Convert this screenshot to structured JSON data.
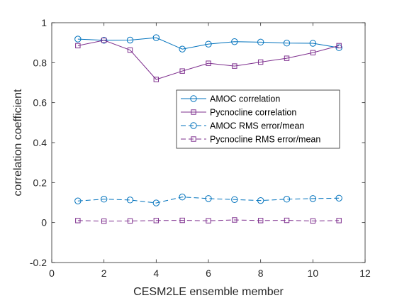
{
  "chart_data": {
    "type": "line",
    "title": "",
    "xlabel": "CESM2LE ensemble member",
    "ylabel": "correlation coefficient",
    "xlim": [
      0,
      12
    ],
    "ylim": [
      -0.2,
      1
    ],
    "xticks": [
      0,
      2,
      4,
      6,
      8,
      10,
      12
    ],
    "yticks": [
      -0.2,
      0,
      0.2,
      0.4,
      0.6,
      0.8,
      1
    ],
    "xtick_labels": [
      "0",
      "2",
      "4",
      "6",
      "8",
      "10",
      "12"
    ],
    "ytick_labels": [
      "-0.2",
      "0",
      "0.2",
      "0.4",
      "0.6",
      "0.8",
      "1"
    ],
    "grid": false,
    "box": true,
    "legend_location": "right",
    "x": [
      1,
      2,
      3,
      4,
      5,
      6,
      7,
      8,
      9,
      10,
      11
    ],
    "series": [
      {
        "name": "AMOC correlation",
        "color": "#0072BD",
        "line_style": "solid",
        "marker": "circle",
        "values": [
          0.918,
          0.912,
          0.913,
          0.925,
          0.868,
          0.893,
          0.905,
          0.903,
          0.898,
          0.897,
          0.875
        ]
      },
      {
        "name": "Pycnocline correlation",
        "color": "#7E2F8E",
        "line_style": "solid",
        "marker": "square",
        "values": [
          0.885,
          0.912,
          0.863,
          0.716,
          0.758,
          0.797,
          0.783,
          0.803,
          0.822,
          0.85,
          0.885
        ]
      },
      {
        "name": "AMOC RMS error/mean",
        "color": "#0072BD",
        "line_style": "dashed",
        "marker": "circle",
        "values": [
          0.108,
          0.117,
          0.113,
          0.098,
          0.128,
          0.12,
          0.115,
          0.11,
          0.117,
          0.12,
          0.122
        ]
      },
      {
        "name": "Pycnocline RMS error/mean",
        "color": "#7E2F8E",
        "line_style": "dashed",
        "marker": "square",
        "values": [
          0.01,
          0.007,
          0.008,
          0.01,
          0.011,
          0.009,
          0.013,
          0.01,
          0.011,
          0.008,
          0.01
        ]
      }
    ]
  }
}
